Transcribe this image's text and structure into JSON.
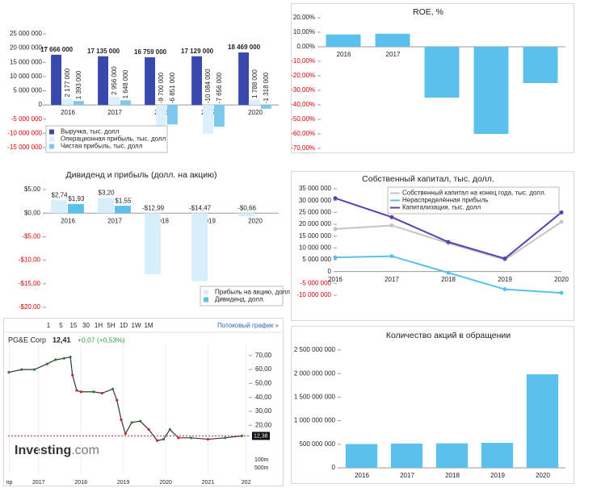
{
  "chart_data": [
    {
      "type": "bar",
      "categories": [
        "2016",
        "2017",
        "2018",
        "2019",
        "2020"
      ],
      "series": [
        {
          "name": "Выручка, тыс. долл",
          "color": "#3949ab",
          "values": [
            17666000,
            17135000,
            16759000,
            17129000,
            18469000
          ],
          "value_labels": [
            "17 666 000",
            "17 135 000",
            "16 759 000",
            "17 129 000",
            "18 469 000"
          ]
        },
        {
          "name": "Операционная прибыль, тыс. долл",
          "color": "#dcefff",
          "values": [
            2177000,
            2956000,
            -9700000,
            -10084000,
            1788000
          ],
          "value_labels": [
            "2 177 000",
            "2 956 000",
            "-9 700 000",
            "-10 084 000",
            "1 788 000"
          ]
        },
        {
          "name": "Чистая прибыль, тыс. долл",
          "color": "#7ec8ee",
          "values": [
            1393000,
            1648000,
            -6851000,
            -7656000,
            -1318000
          ],
          "value_labels": [
            "1 393 000",
            "1 648 000",
            "-6 851 000",
            "-7 656 000",
            "-1 318 000"
          ]
        }
      ],
      "ylim": [
        -15000000,
        25000000
      ],
      "yticks": [
        {
          "value": 25000000,
          "label": "25 000 000"
        },
        {
          "value": 20000000,
          "label": "20 000 000"
        },
        {
          "value": 15000000,
          "label": "15 000 000"
        },
        {
          "value": 10000000,
          "label": "10 000 000"
        },
        {
          "value": 5000000,
          "label": "5 000 000"
        },
        0,
        {
          "value": -5000000,
          "label": "-5 000 000"
        },
        {
          "value": -10000000,
          "label": "-10 000 000"
        },
        {
          "value": -15000000,
          "label": "-15 000 000"
        }
      ],
      "legend": "lower left"
    },
    {
      "type": "bar",
      "title": "ROE, %",
      "categories": [
        "2016",
        "2017",
        "2018",
        "2019",
        "2020"
      ],
      "series": [
        {
          "name": "ROE",
          "color": "#5bc0eb",
          "values": [
            8.5,
            9,
            -35,
            -60,
            -25
          ]
        }
      ],
      "ylim": [
        -70,
        20
      ],
      "yticks": [
        {
          "value": 20,
          "label": "20,00%"
        },
        {
          "value": 10,
          "label": "10,00%"
        },
        {
          "value": 0,
          "label": "0,00%"
        },
        {
          "value": -10,
          "label": "-10,00%"
        },
        {
          "value": -20,
          "label": "-20,00%"
        },
        {
          "value": -30,
          "label": "-30,00%"
        },
        {
          "value": -40,
          "label": "-40,00%"
        },
        {
          "value": -50,
          "label": "-50,00%"
        },
        {
          "value": -60,
          "label": "-60,00%"
        },
        {
          "value": -70,
          "label": "-70,00%"
        }
      ]
    },
    {
      "type": "bar",
      "title": "Дивиденд и прибыль (долл. на акцию)",
      "categories": [
        "2016",
        "2017",
        "2018",
        "2019",
        "2020"
      ],
      "series": [
        {
          "name": "Прибыль на акцию, долл",
          "color": "#d6effb",
          "values": [
            2.74,
            3.2,
            -12.99,
            -14.47,
            -0.66
          ],
          "value_labels": [
            "$2,74",
            "$3,20",
            "-$12,99",
            "-$14,47",
            "-$0,66"
          ]
        },
        {
          "name": "Дивиденд, долл.",
          "color": "#5bc0eb",
          "values": [
            1.93,
            1.55,
            null,
            null,
            null
          ],
          "value_labels": [
            "$1,93",
            "$1,55",
            null,
            null,
            null
          ]
        }
      ],
      "ylim": [
        -20,
        5
      ],
      "yticks": [
        {
          "value": 5,
          "label": "$5,00"
        },
        {
          "value": 0,
          "label": "$0,00"
        },
        {
          "value": -5,
          "label": "-$5,00"
        },
        {
          "value": -10,
          "label": "-$10,00"
        },
        {
          "value": -15,
          "label": "-$15,00"
        },
        {
          "value": -20,
          "label": "-$20,00"
        }
      ],
      "legend": "lower right"
    },
    {
      "type": "line",
      "title": "Собственный капитал, тыс. долл.",
      "categories": [
        "2016",
        "2017",
        "2018",
        "2019",
        "2020"
      ],
      "series": [
        {
          "name": "Собственный капитал на конец года, тыс. долл.",
          "color": "#c4c4c4",
          "values": [
            18000000,
            19500000,
            12000000,
            5000000,
            21000000
          ]
        },
        {
          "name": "Нераспределённая прибыль",
          "color": "#5bc0eb",
          "values": [
            6000000,
            6500000,
            -500000,
            -7500000,
            -9000000
          ]
        },
        {
          "name": "Капитализация, тыс. долл",
          "color": "#5b3fae",
          "values": [
            31000000,
            23000000,
            12500000,
            5500000,
            25000000
          ]
        }
      ],
      "ylim": [
        -10000000,
        35000000
      ],
      "yticks": [
        {
          "value": 35000000,
          "label": "35 000 000"
        },
        {
          "value": 30000000,
          "label": "30 000 000"
        },
        {
          "value": 25000000,
          "label": "25 000 000"
        },
        {
          "value": 20000000,
          "label": "20 000 000"
        },
        {
          "value": 15000000,
          "label": "15 000 000"
        },
        {
          "value": 10000000,
          "label": "10 000 000"
        },
        {
          "value": 5000000,
          "label": "5 000 000"
        },
        0,
        {
          "value": -5000000,
          "label": "-5 000 000"
        },
        {
          "value": -10000000,
          "label": "-10 000 000"
        }
      ],
      "legend": "upper center"
    },
    {
      "type": "line",
      "title": "PG&E Corp",
      "x": [
        2016.3,
        2016.6,
        2016.9,
        2017.2,
        2017.4,
        2017.6,
        2017.75,
        2017.8,
        2017.9,
        2018.0,
        2018.3,
        2018.5,
        2018.75,
        2018.85,
        2018.95,
        2019.05,
        2019.2,
        2019.4,
        2019.6,
        2019.8,
        2019.95,
        2020.1,
        2020.3,
        2020.6,
        2021.0,
        2021.4,
        2021.8
      ],
      "series": [
        {
          "name": "PG&E Corp",
          "color": "#333333",
          "values": [
            58,
            60,
            60,
            64,
            67,
            68,
            69,
            56,
            45,
            44,
            44,
            43,
            46,
            38,
            24,
            14,
            22,
            23,
            17,
            9,
            10,
            17,
            11,
            11,
            10,
            11,
            12.4
          ]
        }
      ],
      "xlim": [
        2016.28,
        2022
      ],
      "xticks": [
        {
          "value": 2016.31,
          "label": "пр"
        },
        2017,
        2018,
        2019,
        2020,
        2021,
        {
          "value": 2021.9,
          "label": "202"
        }
      ],
      "ylim": [
        8,
        78
      ],
      "yticks": [
        {
          "value": 70,
          "label": "70,00"
        },
        {
          "value": 60,
          "label": "60,00"
        },
        {
          "value": 50,
          "label": "50,00"
        },
        {
          "value": 40,
          "label": "40,00"
        },
        {
          "value": 30,
          "label": "30,00"
        },
        {
          "value": 20,
          "label": "20,00"
        }
      ],
      "last_price": {
        "value": 12.38,
        "label": "12,38"
      }
    },
    {
      "type": "bar",
      "title": "Количество акций в обращении",
      "categories": [
        "2016",
        "2017",
        "2018",
        "2019",
        "2020"
      ],
      "series": [
        {
          "name": "Количество акций",
          "color": "#5bc0eb",
          "values": [
            505000000,
            515000000,
            520000000,
            530000000,
            1985000000
          ]
        }
      ],
      "ylim": [
        0,
        2500000000
      ],
      "yticks": [
        0,
        {
          "value": 500000000,
          "label": "500 000 000"
        },
        {
          "value": 1000000000,
          "label": "1 000 000 000"
        },
        {
          "value": 1500000000,
          "label": "1 500 000 000"
        },
        {
          "value": 2000000000,
          "label": "2 000 000 000"
        },
        {
          "value": 2500000000,
          "label": "2 500 000 000"
        }
      ]
    }
  ],
  "widget": {
    "periods": [
      "1",
      "5",
      "15",
      "30",
      "1H",
      "5H",
      "1D",
      "1W",
      "1M"
    ],
    "stream_link": "Потоковый график »",
    "price": "12,41",
    "change": "+0,07 (+0,53%)",
    "brand": "Investing",
    "brand_suffix": ".com",
    "volume_labels": [
      "100m",
      "500m"
    ]
  }
}
